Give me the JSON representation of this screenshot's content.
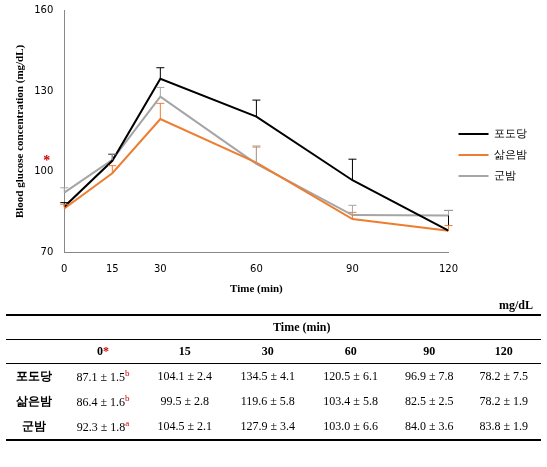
{
  "chart_data": {
    "type": "line",
    "y_label": "Blood glucose concentration (mg/dL)",
    "x_label": "Time (min)",
    "x": [
      0,
      15,
      30,
      60,
      90,
      120
    ],
    "xlim": [
      0,
      120
    ],
    "xticks": [
      0,
      15,
      30,
      60,
      90,
      120
    ],
    "ylim": [
      70,
      160
    ],
    "yticks": [
      70,
      100,
      130,
      160
    ],
    "grid": false,
    "legend": "right",
    "marker": "none",
    "line_style": "solid",
    "series": [
      {
        "name": "포도당",
        "color": "#000000",
        "values": [
          87.1,
          104.1,
          134.5,
          120.5,
          96.9,
          78.2
        ],
        "errors": [
          1.5,
          2.4,
          4.1,
          6.1,
          7.8,
          7.5
        ]
      },
      {
        "name": "삶은밤",
        "color": "#ed7d31",
        "values": [
          86.4,
          99.5,
          119.6,
          103.4,
          82.5,
          78.2
        ],
        "errors": [
          1.6,
          2.8,
          5.8,
          5.8,
          2.5,
          1.9
        ]
      },
      {
        "name": "군밤",
        "color": "#a5a5a5",
        "values": [
          92.3,
          104.5,
          127.9,
          103.0,
          84.0,
          83.8
        ],
        "errors": [
          1.8,
          2.1,
          3.4,
          6.6,
          3.6,
          1.9
        ]
      }
    ],
    "annotations": [
      {
        "text": "*",
        "x": 0,
        "y": 105,
        "color": "#d00000"
      }
    ]
  },
  "table": {
    "unit": "mg/dL",
    "group_header": "Time (min)",
    "columns": [
      {
        "text": "0",
        "mark": "*"
      },
      {
        "text": "15"
      },
      {
        "text": "30"
      },
      {
        "text": "60"
      },
      {
        "text": "90"
      },
      {
        "text": "120"
      }
    ],
    "rows": [
      {
        "name": "포도당",
        "cells": [
          {
            "text": "87.1 ± 1.5",
            "sup": "b"
          },
          {
            "text": "104.1 ± 2.4"
          },
          {
            "text": "134.5 ± 4.1"
          },
          {
            "text": "120.5 ± 6.1"
          },
          {
            "text": "96.9 ± 7.8"
          },
          {
            "text": "78.2 ± 7.5"
          }
        ]
      },
      {
        "name": "삶은밤",
        "cells": [
          {
            "text": "86.4 ± 1.6",
            "sup": "b"
          },
          {
            "text": "99.5 ± 2.8"
          },
          {
            "text": "119.6 ± 5.8"
          },
          {
            "text": "103.4 ± 5.8"
          },
          {
            "text": "82.5 ± 2.5"
          },
          {
            "text": "78.2 ± 1.9"
          }
        ]
      },
      {
        "name": "군밤",
        "cells": [
          {
            "text": "92.3 ± 1.8",
            "sup": "a"
          },
          {
            "text": "104.5 ± 2.1"
          },
          {
            "text": "127.9 ± 3.4"
          },
          {
            "text": "103.0 ± 6.6"
          },
          {
            "text": "84.0 ± 3.6"
          },
          {
            "text": "83.8 ± 1.9"
          }
        ]
      }
    ]
  }
}
